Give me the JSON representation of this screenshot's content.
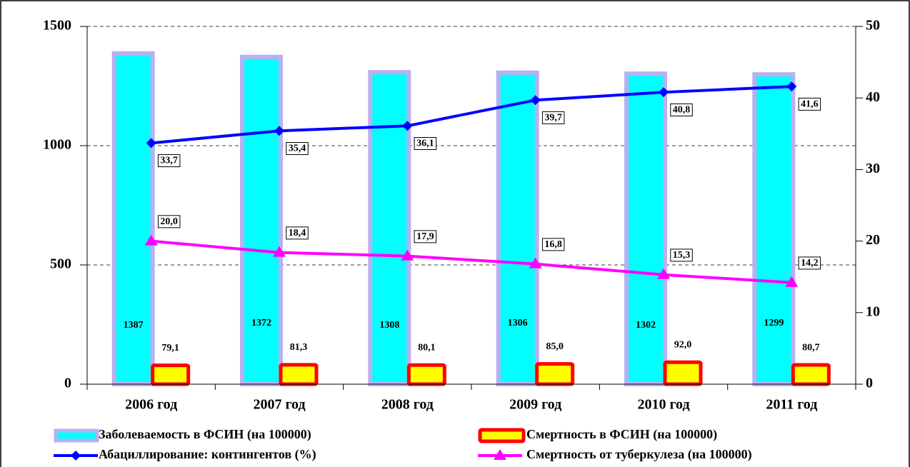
{
  "chart_data": {
    "type": "bar",
    "categories": [
      "2006 год",
      "2007 год",
      "2008 год",
      "2009 год",
      "2010 год",
      "2011 год"
    ],
    "ylim": [
      0,
      1500
    ],
    "yticks": [
      0,
      500,
      1000,
      1500
    ],
    "y2lim": [
      0,
      50
    ],
    "y2ticks": [
      0,
      10,
      20,
      30,
      40,
      50
    ],
    "grid": true,
    "legend": "bottom",
    "series": [
      {
        "name": "Заболеваемость в ФСИН (на 100000)",
        "type": "bar",
        "color": "#00ffff",
        "edge": "#b8b0f0",
        "values": [
          1387,
          1372,
          1308,
          1306,
          1302,
          1299
        ]
      },
      {
        "name": "Смертность в ФСИН (на 100000)",
        "type": "bar",
        "color": "#ffff00",
        "edge": "#ff0000",
        "values": [
          79.1,
          81.3,
          80.1,
          85.0,
          92.0,
          80.7
        ],
        "value_labels": [
          "79,1",
          "81,3",
          "80,1",
          "85,0",
          "92,0",
          "80,7"
        ]
      },
      {
        "name": "Абациллирование: контингентов (%)",
        "type": "line",
        "axis": "y2",
        "marker": "diamond",
        "color": "#0000ff",
        "values": [
          33.7,
          35.4,
          36.1,
          39.7,
          40.8,
          41.6
        ],
        "value_labels": [
          "33,7",
          "35,4",
          "36,1",
          "39,7",
          "40,8",
          "41,6"
        ]
      },
      {
        "name": "Смертность от туберкулеза (на 100000)",
        "type": "line",
        "axis": "y2",
        "marker": "triangle",
        "color": "#ff00ff",
        "values": [
          20.0,
          18.4,
          17.9,
          16.8,
          15.3,
          14.2
        ],
        "value_labels": [
          "20,0",
          "18,4",
          "17,9",
          "16,8",
          "15,3",
          "14,2"
        ]
      }
    ]
  }
}
